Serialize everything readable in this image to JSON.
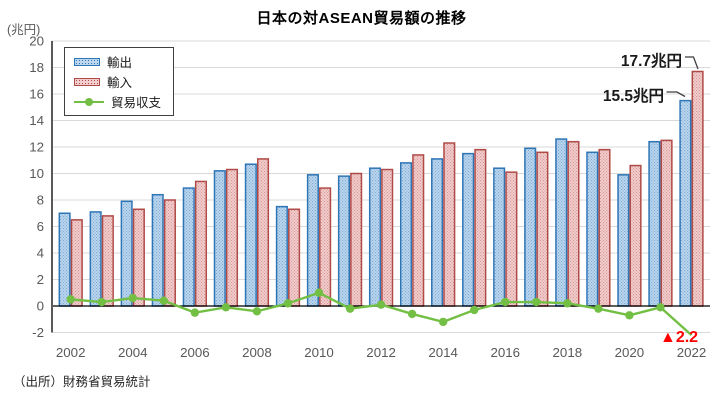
{
  "title": "日本の対ASEAN貿易額の推移",
  "y_axis_unit": "(兆円)",
  "source": "（出所）財務省貿易統計",
  "legend": {
    "export_label": "輸出",
    "import_label": "輸入",
    "balance_label": "貿易収支"
  },
  "annotations": {
    "import_2022": "17.7兆円",
    "export_2022": "15.5兆円",
    "balance_2022": "▲2.2"
  },
  "colors": {
    "export_border": "#2E75B6",
    "export_fill": "#BDD7EE",
    "import_border": "#B04A47",
    "import_fill": "#F2CFCE",
    "balance_line": "#72BF44",
    "gridline": "#D9D9D9",
    "axis_text": "#595959",
    "zero_line": "#000000",
    "negative_annotation": "#FF0000"
  },
  "chart_data": {
    "type": "bar+line",
    "title": "日本の対ASEAN貿易額の推移",
    "unit": "兆円",
    "categories": [
      2002,
      2003,
      2004,
      2005,
      2006,
      2007,
      2008,
      2009,
      2010,
      2011,
      2012,
      2013,
      2014,
      2015,
      2016,
      2017,
      2018,
      2019,
      2020,
      2021,
      2022
    ],
    "series": [
      {
        "name": "輸出",
        "type": "bar",
        "color": "#2E75B6",
        "fill": "#BDD7EE",
        "values": [
          7.0,
          7.1,
          7.9,
          8.4,
          8.9,
          10.2,
          10.7,
          7.5,
          9.9,
          9.8,
          10.4,
          10.8,
          11.1,
          11.5,
          10.4,
          11.9,
          12.6,
          11.6,
          9.9,
          12.4,
          15.5
        ]
      },
      {
        "name": "輸入",
        "type": "bar",
        "color": "#B04A47",
        "fill": "#F2CFCE",
        "values": [
          6.5,
          6.8,
          7.3,
          8.0,
          9.4,
          10.3,
          11.1,
          7.3,
          8.9,
          10.0,
          10.3,
          11.4,
          12.3,
          11.8,
          10.1,
          11.6,
          12.4,
          11.8,
          10.6,
          12.5,
          17.7
        ]
      },
      {
        "name": "貿易収支",
        "type": "line",
        "color": "#72BF44",
        "values": [
          0.5,
          0.3,
          0.6,
          0.4,
          -0.5,
          -0.1,
          -0.4,
          0.2,
          1.0,
          -0.2,
          0.1,
          -0.6,
          -1.2,
          -0.3,
          0.3,
          0.3,
          0.2,
          -0.2,
          -0.7,
          -0.1,
          -2.2
        ]
      }
    ],
    "ylim": [
      -2,
      20
    ],
    "ytick_step": 2,
    "xtick_labels": [
      "2002",
      "2004",
      "2006",
      "2008",
      "2010",
      "2012",
      "2014",
      "2016",
      "2018",
      "2020",
      "2022"
    ],
    "grid": true,
    "legend_position": "top-left-inside"
  }
}
